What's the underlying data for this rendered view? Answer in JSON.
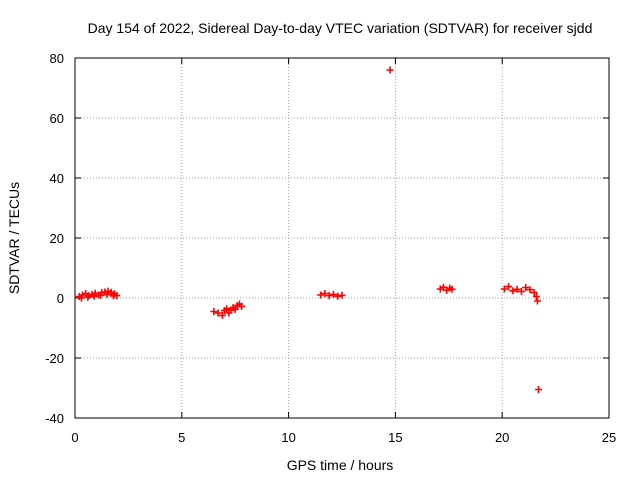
{
  "chart_data": {
    "type": "scatter",
    "title": "Day 154 of 2022, Sidereal Day-to-day VTEC variation (SDTVAR) for receiver sjdd",
    "xlabel": "GPS time / hours",
    "ylabel": "SDTVAR / TECUs",
    "xlim": [
      0,
      25
    ],
    "ylim": [
      -40,
      80
    ],
    "xticks": [
      0,
      5,
      10,
      15,
      20,
      25
    ],
    "yticks": [
      -40,
      -20,
      0,
      20,
      40,
      60,
      80
    ],
    "xtick_labels": [
      "0",
      "5",
      "10",
      "15",
      "20",
      "25"
    ],
    "ytick_labels": [
      "-40",
      "-20",
      "0",
      "20",
      "40",
      "60",
      "80"
    ],
    "grid": true,
    "marker": "+",
    "color": "#ff0000",
    "series": [
      {
        "name": "SDTVAR",
        "points": [
          [
            0.2,
            0.5
          ],
          [
            0.35,
            1.0
          ],
          [
            0.5,
            1.5
          ],
          [
            0.65,
            0.8
          ],
          [
            0.8,
            1.2
          ],
          [
            0.95,
            1.6
          ],
          [
            1.1,
            1.0
          ],
          [
            1.25,
            1.8
          ],
          [
            1.4,
            2.0
          ],
          [
            1.55,
            2.3
          ],
          [
            1.7,
            1.9
          ],
          [
            1.85,
            1.4
          ],
          [
            1.95,
            0.8
          ],
          [
            0.3,
            0.0
          ],
          [
            0.6,
            0.3
          ],
          [
            0.9,
            0.6
          ],
          [
            1.2,
            0.9
          ],
          [
            1.5,
            1.2
          ],
          [
            1.8,
            0.7
          ],
          [
            6.5,
            -4.5
          ],
          [
            6.7,
            -5.0
          ],
          [
            6.9,
            -5.8
          ],
          [
            7.0,
            -4.2
          ],
          [
            7.1,
            -3.6
          ],
          [
            7.2,
            -5.0
          ],
          [
            7.3,
            -4.0
          ],
          [
            7.4,
            -3.2
          ],
          [
            7.5,
            -3.8
          ],
          [
            7.6,
            -2.5
          ],
          [
            7.7,
            -2.0
          ],
          [
            7.8,
            -2.8
          ],
          [
            11.5,
            1.0
          ],
          [
            11.7,
            1.5
          ],
          [
            11.9,
            0.8
          ],
          [
            12.1,
            1.2
          ],
          [
            12.3,
            0.6
          ],
          [
            12.5,
            0.9
          ],
          [
            14.75,
            76.0
          ],
          [
            17.1,
            3.0
          ],
          [
            17.25,
            3.6
          ],
          [
            17.4,
            2.6
          ],
          [
            17.55,
            3.3
          ],
          [
            17.65,
            2.9
          ],
          [
            20.1,
            3.0
          ],
          [
            20.3,
            3.8
          ],
          [
            20.5,
            2.4
          ],
          [
            20.7,
            2.9
          ],
          [
            20.9,
            2.2
          ],
          [
            21.1,
            3.5
          ],
          [
            21.3,
            2.8
          ],
          [
            21.5,
            1.8
          ],
          [
            21.6,
            0.5
          ],
          [
            21.65,
            -1.0
          ],
          [
            21.7,
            -30.5
          ]
        ]
      }
    ]
  }
}
